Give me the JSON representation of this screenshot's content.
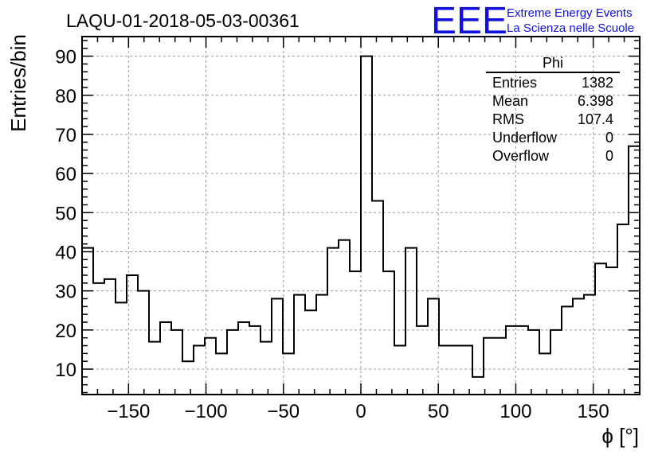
{
  "chart_data": {
    "type": "histogram",
    "title": "LAQU-01-2018-05-03-00361",
    "xlabel": "ϕ [°]",
    "ylabel": "Entries/bin",
    "xlim": [
      -180,
      180
    ],
    "ylim": [
      3.5,
      95
    ],
    "grid": true,
    "bin_width": 7.2,
    "values": [
      41,
      32,
      33,
      27,
      34,
      30,
      17,
      22,
      20,
      12,
      16,
      18,
      14,
      20,
      22,
      21,
      17,
      28,
      14,
      29,
      25,
      29,
      41,
      43,
      35,
      90,
      53,
      35,
      16,
      41,
      21,
      28,
      16,
      16,
      16,
      8,
      18,
      18,
      21,
      21,
      20,
      14,
      20,
      26,
      28,
      29,
      37,
      36,
      47,
      67
    ],
    "x_ticks": [
      -150,
      -100,
      -50,
      0,
      50,
      100,
      150
    ],
    "x_tick_labels": [
      "−150",
      "−100",
      "−50",
      "0",
      "50",
      "100",
      "150"
    ],
    "y_ticks": [
      10,
      20,
      30,
      40,
      50,
      60,
      70,
      80,
      90
    ],
    "y_tick_labels": [
      "10",
      "20",
      "30",
      "40",
      "50",
      "60",
      "70",
      "80",
      "90"
    ]
  },
  "stats_box": {
    "title": "Phi",
    "rows": [
      {
        "label": "Entries",
        "value": "1382"
      },
      {
        "label": "Mean",
        "value": "6.398"
      },
      {
        "label": "RMS",
        "value": "107.4"
      },
      {
        "label": "Underflow",
        "value": "0"
      },
      {
        "label": "Overflow",
        "value": "0"
      }
    ]
  },
  "logo": {
    "text": "EEE",
    "line1": "Extreme Energy Events",
    "line2": "La Scienza nelle Scuole",
    "color": "#1010e0"
  },
  "colors": {
    "line": "#000000",
    "grid": "#999999"
  }
}
